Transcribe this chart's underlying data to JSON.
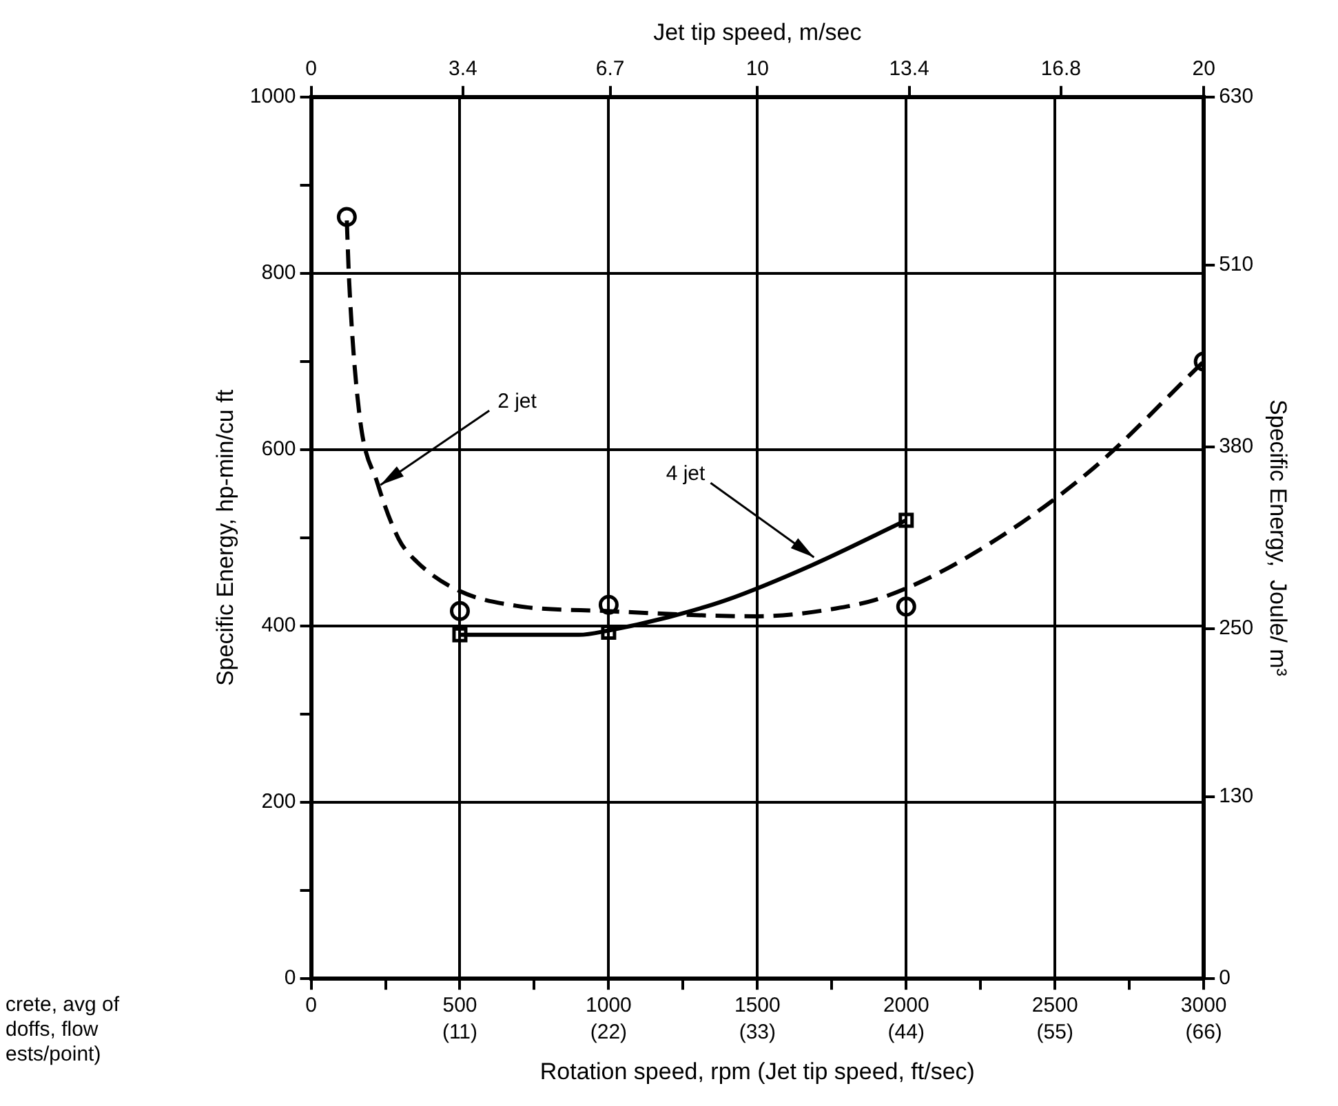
{
  "chart_data": {
    "type": "line",
    "xlabel": "Rotation speed, rpm (Jet tip speed, ft/sec)",
    "x2label": "Jet tip speed, m/sec",
    "ylabel": "Specific Energy, hp-min/cu ft",
    "y2label": "Specific Energy,  Joule/ m³",
    "xlim": [
      0,
      3000
    ],
    "xticks": [
      0,
      {
        "value": 250,
        "label": null
      },
      500,
      {
        "value": 750,
        "label": null
      },
      1000,
      {
        "value": 1250,
        "label": null
      },
      1500,
      {
        "value": 1750,
        "label": null
      },
      2000,
      {
        "value": 2250,
        "label": null
      },
      2500,
      {
        "value": 2750,
        "label": null
      },
      3000
    ],
    "x2lim": [
      0,
      20
    ],
    "x2ticks": [
      0,
      3.4,
      6.7,
      10,
      13.4,
      16.8,
      20
    ],
    "ylim": [
      0,
      1000
    ],
    "yticks": [
      0,
      {
        "value": 100,
        "label": null
      },
      200,
      {
        "value": 300,
        "label": null
      },
      400,
      {
        "value": 500,
        "label": null
      },
      600,
      {
        "value": 700,
        "label": null
      },
      800,
      {
        "value": 900,
        "label": null
      },
      1000
    ],
    "y2lim": [
      0,
      630
    ],
    "y2ticks": [
      0,
      130,
      250,
      380,
      510,
      630
    ],
    "grid": true,
    "legend": false,
    "series": [
      {
        "type": "scatter",
        "marker": "circle",
        "color": "#000000",
        "x": [
          120,
          500,
          1000,
          2000,
          3000
        ],
        "values": [
          864,
          417,
          424,
          422,
          700
        ]
      },
      {
        "type": "line",
        "marker": "none",
        "line_style": "dashed",
        "color": "#000000",
        "x": [
          120,
          128,
          162,
          223,
          294,
          355,
          497,
          689,
          993,
          1500,
          1764,
          1926,
          2210,
          2615,
          3000
        ],
        "values": [
          860,
          790,
          641,
          562,
          499,
          473,
          440,
          423,
          417,
          411,
          420,
          433,
          479,
          575,
          700
        ]
      },
      {
        "type": "scatter",
        "marker": "square",
        "color": "#000000",
        "x": [
          500,
          1000,
          2000
        ],
        "values": [
          390,
          393,
          520
        ]
      },
      {
        "type": "line",
        "marker": "none",
        "line_style": "solid",
        "color": "#000000",
        "x": [
          500,
          900,
          1000,
          1200,
          1400,
          1683,
          2000
        ],
        "values": [
          390,
          390,
          395,
          410,
          430,
          469,
          520
        ]
      }
    ],
    "annotations": [
      "(11)",
      "(22)",
      "(33)",
      "(44)",
      "(55)",
      "(66)",
      {
        "text": "2 jet",
        "x": 233,
        "y": 560
      },
      {
        "text": "4 jet",
        "x": 1690,
        "y": 478
      },
      "crete, avg of",
      "doffs, flow",
      "ests/point)"
    ]
  }
}
